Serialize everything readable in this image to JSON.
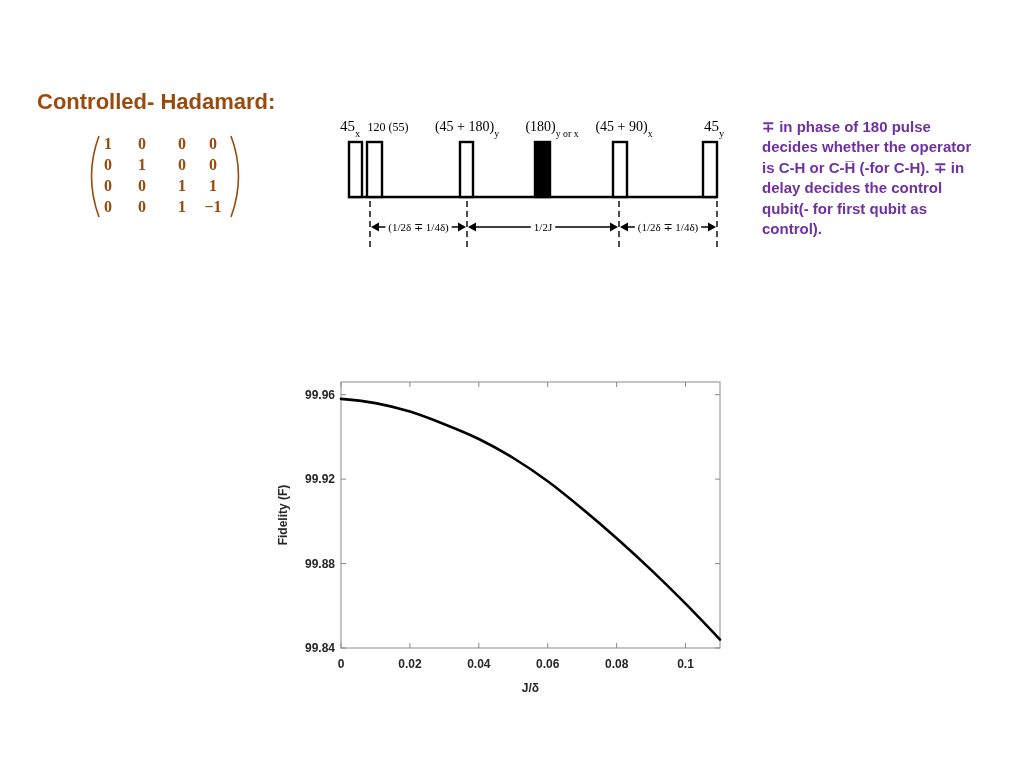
{
  "chart_data": {
    "type": "line",
    "title": "Controlled- Hadamard:",
    "xlabel": "J/δ",
    "ylabel": "Fidelity (F)",
    "x": [
      0,
      0.01,
      0.02,
      0.03,
      0.04,
      0.05,
      0.06,
      0.07,
      0.08,
      0.09,
      0.1,
      0.11
    ],
    "series": [
      {
        "color": "#000000",
        "values": [
          99.958,
          99.956,
          99.952,
          99.946,
          99.939,
          99.93,
          99.919,
          99.906,
          99.892,
          99.877,
          99.861,
          99.844
        ]
      }
    ],
    "xlim": [
      0,
      0.11
    ],
    "ylim": [
      99.84,
      99.966
    ],
    "xticks": [
      0,
      0.02,
      0.04,
      0.06,
      0.08,
      0.1
    ],
    "yticks": [
      99.84,
      99.88,
      99.92,
      99.96
    ],
    "annotations": [
      "1 0 0 0",
      "0 1 0 0",
      "0 0 1 1",
      "0 0 1 −1",
      "45$_{x}$",
      "120 (55)",
      "(45 + 180)$_{y}$",
      "(180)$_{y or x}$",
      "(45 + 90)$_{x}$",
      "45$_{y}$",
      "(1/2δ ∓ 1/4δ)",
      "1/2J",
      "(1/2δ ∓ 1/4δ)",
      "∓ in phase of 180 pulse decides whether the operator is C-H or C-H̅ (-for C-H). ∓ in delay decides the control qubit(- for first qubit as control)."
    ]
  }
}
